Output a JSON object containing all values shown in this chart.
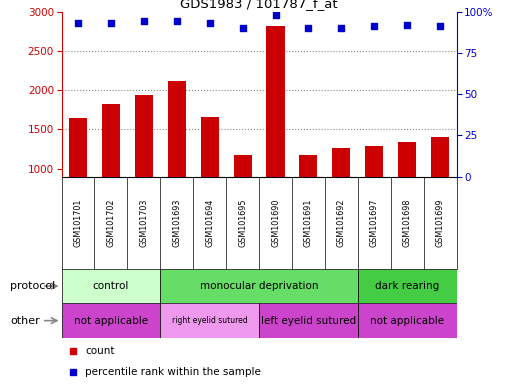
{
  "title": "GDS1983 / 101787_f_at",
  "samples": [
    "GSM101701",
    "GSM101702",
    "GSM101703",
    "GSM101693",
    "GSM101694",
    "GSM101695",
    "GSM101690",
    "GSM101691",
    "GSM101692",
    "GSM101697",
    "GSM101698",
    "GSM101699"
  ],
  "counts": [
    1650,
    1830,
    1940,
    2120,
    1660,
    1175,
    2820,
    1170,
    1265,
    1295,
    1340,
    1400
  ],
  "percentiles": [
    93,
    93,
    94,
    94,
    93,
    90,
    98,
    90,
    90,
    91,
    92,
    91
  ],
  "bar_color": "#cc0000",
  "dot_color": "#0000cc",
  "ylim_left": [
    900,
    3000
  ],
  "ylim_right": [
    0,
    100
  ],
  "yticks_left": [
    1000,
    1500,
    2000,
    2500,
    3000
  ],
  "yticks_right": [
    0,
    25,
    50,
    75,
    100
  ],
  "protocol_groups": [
    {
      "label": "control",
      "start": 0,
      "end": 3,
      "color": "#ccffcc"
    },
    {
      "label": "monocular deprivation",
      "start": 3,
      "end": 9,
      "color": "#66dd66"
    },
    {
      "label": "dark rearing",
      "start": 9,
      "end": 12,
      "color": "#44cc44"
    }
  ],
  "other_groups": [
    {
      "label": "not applicable",
      "start": 0,
      "end": 3,
      "color": "#cc44cc"
    },
    {
      "label": "right eyelid sutured",
      "start": 3,
      "end": 6,
      "color": "#ee99ee"
    },
    {
      "label": "left eyelid sutured",
      "start": 6,
      "end": 9,
      "color": "#cc44cc"
    },
    {
      "label": "not applicable",
      "start": 9,
      "end": 12,
      "color": "#cc44cc"
    }
  ],
  "protocol_label": "protocol",
  "other_label": "other",
  "legend_count_label": "count",
  "legend_percentile_label": "percentile rank within the sample",
  "background_color": "#ffffff",
  "grid_color": "#888888",
  "label_bg_color": "#cccccc",
  "grid_dotted_at": [
    1500,
    2000,
    2500
  ]
}
